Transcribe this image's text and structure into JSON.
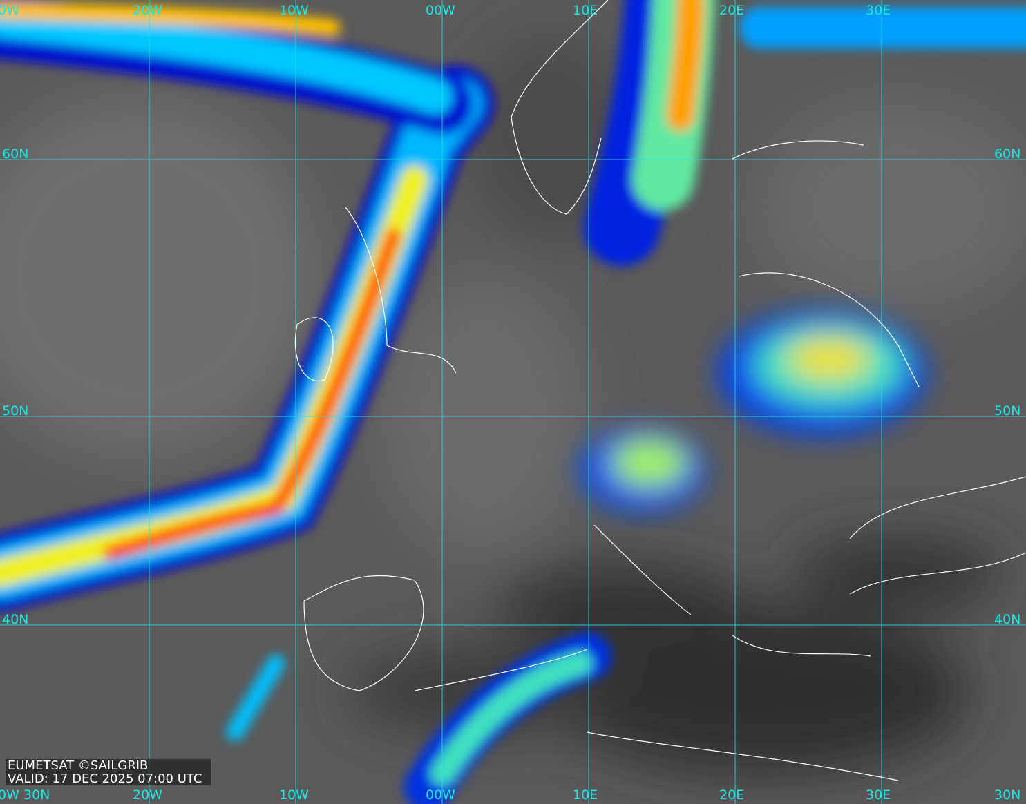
{
  "colors": {
    "grid": "#19e6e6",
    "coast": "#ffffff",
    "background": "#5a5a5a"
  },
  "top_labels": [
    "0W",
    "20W",
    "10W",
    "00W",
    "10E",
    "20E",
    "30E"
  ],
  "bottom_labels": [
    "0W",
    "20W",
    "10W",
    "00W",
    "10E",
    "20E",
    "30E"
  ],
  "left_labels": [
    "60N",
    "50N",
    "40N",
    "30N"
  ],
  "right_labels": [
    "60N",
    "50N",
    "40N",
    "30N"
  ],
  "caption": {
    "line1": "EUMETSAT ©SAILGRIB",
    "line2": "VALID:  17 DEC 2025 07:00 UTC"
  }
}
